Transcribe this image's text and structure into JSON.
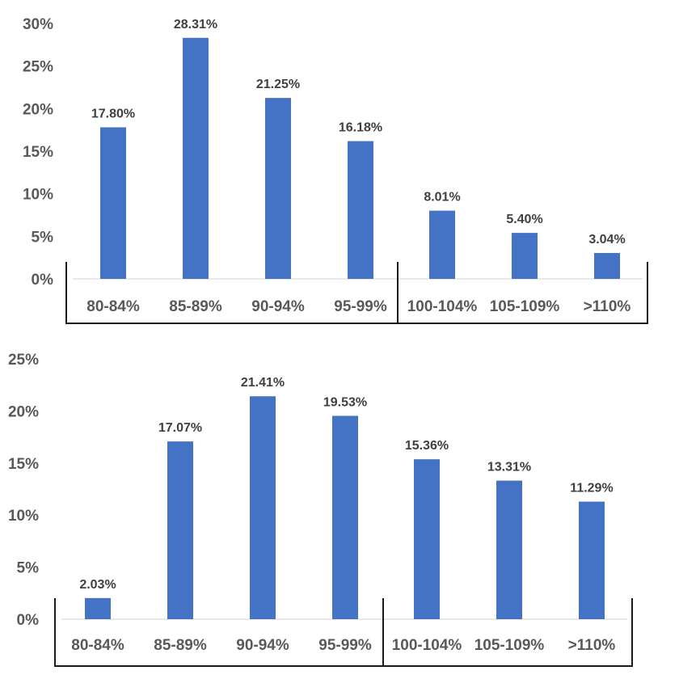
{
  "colors": {
    "bar": "#4472C4",
    "tick_text": "#595959",
    "label_text": "#404040",
    "bracket": "#1a1a1a",
    "group_left_text": "#E07B39",
    "group_right_text": "#2E9E5B"
  },
  "chart_data": [
    {
      "type": "bar",
      "title": "",
      "xlabel": "",
      "ylabel": "",
      "ylim": [
        0,
        30
      ],
      "yticks": [
        "0%",
        "5%",
        "10%",
        "15%",
        "20%",
        "25%",
        "30%"
      ],
      "grid": false,
      "categories": [
        "80-84%",
        "85-89%",
        "90-94%",
        "95-99%",
        "100-104%",
        "105-109%",
        ">110%"
      ],
      "values": [
        17.8,
        28.31,
        21.25,
        16.18,
        8.01,
        5.4,
        3.04
      ],
      "data_labels": [
        "17.80%",
        "28.31%",
        "21.25%",
        "16.18%",
        "8.01%",
        "5.40%",
        "3.04%"
      ],
      "group_labels": [
        "",
        ""
      ]
    },
    {
      "type": "bar",
      "title": "",
      "xlabel": "",
      "ylabel": "",
      "ylim": [
        0,
        25
      ],
      "yticks": [
        "0%",
        "5%",
        "10%",
        "15%",
        "20%",
        "25%"
      ],
      "grid": false,
      "categories": [
        "80-84%",
        "85-89%",
        "90-94%",
        "95-99%",
        "100-104%",
        "105-109%",
        ">110%"
      ],
      "values": [
        2.03,
        17.07,
        21.41,
        19.53,
        15.36,
        13.31,
        11.29
      ],
      "data_labels": [
        "2.03%",
        "17.07%",
        "21.41%",
        "19.53%",
        "15.36%",
        "13.31%",
        "11.29%"
      ],
      "group_labels": [
        "",
        ""
      ]
    }
  ]
}
